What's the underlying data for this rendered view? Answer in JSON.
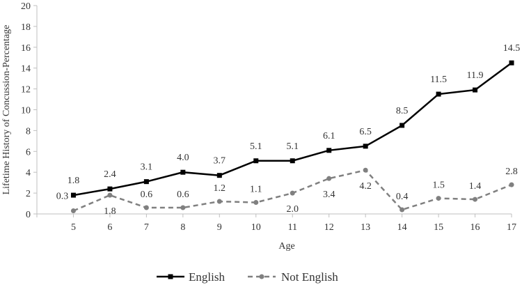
{
  "chart_data": {
    "type": "line",
    "title": "",
    "xlabel": "Age",
    "ylabel": "Lifetime History of Concussion-Percentage",
    "ylim": [
      0,
      20
    ],
    "yticks": [
      "0",
      "2",
      "4",
      "6",
      "8",
      "10",
      "12",
      "14",
      "16",
      "18",
      "20"
    ],
    "x": [
      "5",
      "6",
      "7",
      "8",
      "9",
      "10",
      "11",
      "12",
      "13",
      "14",
      "15",
      "16",
      "17"
    ],
    "grid": false,
    "legend_position": "bottom",
    "series": [
      {
        "name": "English",
        "style": "solid",
        "marker": "square",
        "color": "#000000",
        "values": [
          1.8,
          2.4,
          3.1,
          4.0,
          3.7,
          5.1,
          5.1,
          6.1,
          6.5,
          8.5,
          11.5,
          11.9,
          14.5
        ],
        "labels": [
          "1.8",
          "2.4",
          "3.1",
          "4.0",
          "3.7",
          "5.1",
          "5.1",
          "6.1",
          "6.5",
          "8.5",
          "11.5",
          "11.9",
          "14.5"
        ]
      },
      {
        "name": "Not English",
        "style": "dashed",
        "marker": "circle",
        "color": "#808080",
        "values": [
          0.3,
          1.8,
          0.6,
          0.6,
          1.2,
          1.1,
          2.0,
          3.4,
          4.2,
          0.4,
          1.5,
          1.4,
          2.8
        ],
        "labels": [
          "0.3",
          "1.8",
          "0.6",
          "0.6",
          "1.2",
          "1.1",
          "2.0",
          "3.4",
          "4.2",
          "0.4",
          "1.5",
          "1.4",
          "2.8"
        ]
      }
    ]
  }
}
